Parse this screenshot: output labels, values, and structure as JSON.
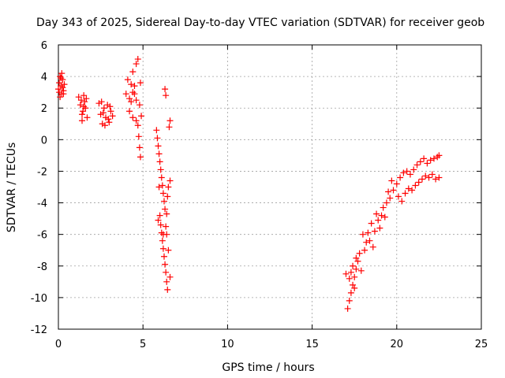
{
  "chart_data": {
    "type": "scatter",
    "title": "Day 343 of 2025, Sidereal Day-to-day VTEC variation (SDTVAR) for receiver geob",
    "xlabel": "GPS time / hours",
    "ylabel": "SDTVAR / TECUs",
    "xlim": [
      0,
      25
    ],
    "ylim": [
      -12,
      6
    ],
    "xticks": [
      "0",
      "5",
      "10",
      "15",
      "20",
      "25"
    ],
    "xtick_values": [
      0,
      5,
      10,
      15,
      20,
      25
    ],
    "yticks": [
      "6",
      "4",
      "2",
      "0",
      "-2",
      "-4",
      "-6",
      "-8",
      "-10",
      "-12"
    ],
    "ytick_values": [
      6,
      4,
      2,
      0,
      -2,
      -4,
      -6,
      -8,
      -10,
      -12
    ],
    "grid": true,
    "marker": "plus",
    "color": "#ff0000",
    "series": [
      {
        "name": "SDTVAR",
        "points": [
          [
            0.0,
            3.2
          ],
          [
            0.05,
            3.6
          ],
          [
            0.1,
            4.0
          ],
          [
            0.15,
            3.4
          ],
          [
            0.2,
            2.9
          ],
          [
            0.25,
            3.8
          ],
          [
            0.3,
            3.1
          ],
          [
            0.35,
            3.5
          ],
          [
            0.1,
            2.7
          ],
          [
            0.2,
            4.2
          ],
          [
            0.3,
            2.9
          ],
          [
            0.05,
            3.0
          ],
          [
            0.15,
            3.9
          ],
          [
            0.25,
            3.3
          ],
          [
            1.2,
            2.7
          ],
          [
            1.3,
            2.2
          ],
          [
            1.4,
            1.6
          ],
          [
            1.5,
            2.8
          ],
          [
            1.6,
            2.0
          ],
          [
            1.7,
            1.4
          ],
          [
            1.35,
            2.5
          ],
          [
            1.45,
            1.8
          ],
          [
            1.55,
            2.4
          ],
          [
            1.65,
            2.6
          ],
          [
            1.4,
            1.2
          ],
          [
            1.5,
            2.1
          ],
          [
            2.4,
            2.3
          ],
          [
            2.5,
            1.6
          ],
          [
            2.6,
            1.0
          ],
          [
            2.7,
            2.0
          ],
          [
            2.8,
            1.4
          ],
          [
            2.9,
            2.2
          ],
          [
            3.0,
            1.1
          ],
          [
            3.1,
            1.8
          ],
          [
            3.2,
            1.5
          ],
          [
            2.55,
            2.4
          ],
          [
            2.75,
            0.9
          ],
          [
            3.05,
            2.1
          ],
          [
            2.65,
            1.7
          ],
          [
            2.95,
            1.3
          ],
          [
            4.0,
            2.9
          ],
          [
            4.1,
            3.8
          ],
          [
            4.2,
            2.6
          ],
          [
            4.3,
            3.5
          ],
          [
            4.4,
            4.3
          ],
          [
            4.5,
            2.9
          ],
          [
            4.6,
            4.8
          ],
          [
            4.7,
            5.1
          ],
          [
            4.5,
            3.4
          ],
          [
            4.3,
            2.4
          ],
          [
            4.2,
            1.8
          ],
          [
            4.4,
            1.4
          ],
          [
            4.6,
            1.2
          ],
          [
            4.7,
            0.9
          ],
          [
            4.75,
            0.2
          ],
          [
            4.8,
            -0.5
          ],
          [
            4.85,
            -1.1
          ],
          [
            4.8,
            2.2
          ],
          [
            4.85,
            3.6
          ],
          [
            4.9,
            1.5
          ],
          [
            4.6,
            2.5
          ],
          [
            4.4,
            3.0
          ],
          [
            5.8,
            0.6
          ],
          [
            5.85,
            0.1
          ],
          [
            5.9,
            -0.4
          ],
          [
            5.95,
            -0.9
          ],
          [
            6.0,
            -1.4
          ],
          [
            6.05,
            -1.9
          ],
          [
            6.1,
            -2.4
          ],
          [
            6.15,
            -2.9
          ],
          [
            6.2,
            -3.4
          ],
          [
            6.25,
            -3.9
          ],
          [
            6.3,
            -4.4
          ],
          [
            6.0,
            -4.8
          ],
          [
            6.05,
            -5.4
          ],
          [
            6.1,
            -5.9
          ],
          [
            6.15,
            -6.4
          ],
          [
            6.2,
            -6.9
          ],
          [
            6.25,
            -7.4
          ],
          [
            6.3,
            -7.9
          ],
          [
            6.35,
            -8.4
          ],
          [
            6.4,
            -9.0
          ],
          [
            6.45,
            -9.5
          ],
          [
            5.9,
            -5.1
          ],
          [
            6.4,
            -6.0
          ],
          [
            6.5,
            -7.0
          ],
          [
            6.6,
            -8.7
          ],
          [
            6.5,
            -3.0
          ],
          [
            6.6,
            -2.6
          ],
          [
            6.4,
            -4.7
          ],
          [
            6.2,
            -6.0
          ],
          [
            6.3,
            3.2
          ],
          [
            6.35,
            2.8
          ],
          [
            6.6,
            1.2
          ],
          [
            6.55,
            0.8
          ],
          [
            5.95,
            -3.0
          ],
          [
            6.35,
            -5.5
          ],
          [
            6.45,
            -3.6
          ],
          [
            17.1,
            -10.7
          ],
          [
            17.2,
            -10.2
          ],
          [
            17.3,
            -9.7
          ],
          [
            17.4,
            -9.2
          ],
          [
            17.5,
            -8.7
          ],
          [
            17.6,
            -8.2
          ],
          [
            17.7,
            -7.7
          ],
          [
            17.8,
            -7.2
          ],
          [
            17.2,
            -8.8
          ],
          [
            17.3,
            -8.4
          ],
          [
            17.4,
            -8.0
          ],
          [
            17.6,
            -7.5
          ],
          [
            17.9,
            -8.3
          ],
          [
            18.1,
            -7.0
          ],
          [
            18.2,
            -6.5
          ],
          [
            18.0,
            -6.0
          ],
          [
            18.3,
            -5.9
          ],
          [
            18.4,
            -6.4
          ],
          [
            18.5,
            -5.3
          ],
          [
            18.7,
            -5.8
          ],
          [
            18.9,
            -5.1
          ],
          [
            19.1,
            -4.8
          ],
          [
            19.2,
            -4.3
          ],
          [
            19.4,
            -4.0
          ],
          [
            19.6,
            -3.7
          ],
          [
            19.5,
            -3.3
          ],
          [
            19.8,
            -3.2
          ],
          [
            20.0,
            -2.8
          ],
          [
            20.2,
            -2.4
          ],
          [
            20.4,
            -2.1
          ],
          [
            20.6,
            -2.0
          ],
          [
            20.8,
            -2.2
          ],
          [
            21.0,
            -1.9
          ],
          [
            21.2,
            -1.6
          ],
          [
            21.4,
            -1.4
          ],
          [
            21.6,
            -1.2
          ],
          [
            21.8,
            -1.5
          ],
          [
            22.0,
            -1.3
          ],
          [
            22.2,
            -1.2
          ],
          [
            22.4,
            -1.1
          ],
          [
            22.5,
            -1.0
          ],
          [
            20.1,
            -3.6
          ],
          [
            20.3,
            -3.9
          ],
          [
            20.5,
            -3.4
          ],
          [
            20.7,
            -3.1
          ],
          [
            20.9,
            -3.2
          ],
          [
            21.1,
            -2.9
          ],
          [
            21.3,
            -2.7
          ],
          [
            21.5,
            -2.5
          ],
          [
            21.7,
            -2.3
          ],
          [
            21.9,
            -2.4
          ],
          [
            22.1,
            -2.2
          ],
          [
            22.3,
            -2.5
          ],
          [
            22.5,
            -2.4
          ],
          [
            19.0,
            -5.6
          ],
          [
            19.3,
            -4.9
          ],
          [
            18.6,
            -6.8
          ],
          [
            17.5,
            -9.4
          ],
          [
            17.0,
            -8.5
          ],
          [
            18.8,
            -4.7
          ],
          [
            19.7,
            -2.6
          ]
        ]
      }
    ]
  }
}
